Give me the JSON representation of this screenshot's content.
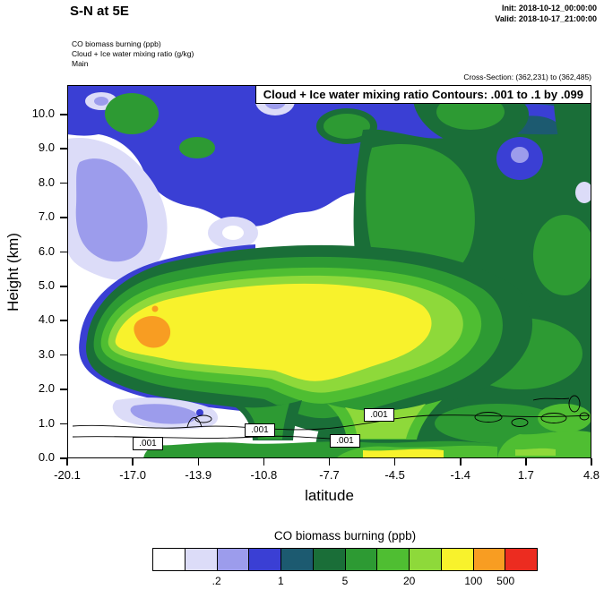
{
  "header": {
    "title": "S-N at 5E",
    "init_line": "Init: 2018-10-12_00:00:00",
    "valid_line": "Valid: 2018-10-17_21:00:00"
  },
  "info_block": {
    "line1": "CO biomass burning   (ppb)",
    "line2": "Cloud + Ice water mixing ratio   (g/kg)",
    "line3": "Main"
  },
  "cross_section_label": "Cross-Section: (362,231) to (362,485)",
  "plot": {
    "banner": "Cloud + Ice water mixing ratio Contours: .001 to .1 by .099",
    "ylabel": "Height (km)",
    "xlabel": "latitude",
    "y_tick_labels": [
      "0.0",
      "1.0",
      "2.0",
      "3.0",
      "4.0",
      "5.0",
      "6.0",
      "7.0",
      "8.0",
      "9.0",
      "10.0"
    ],
    "x_tick_labels": [
      "-20.1",
      "-17.0",
      "-13.9",
      "-10.8",
      "-7.7",
      "-4.5",
      "-1.4",
      "1.7",
      "4.8"
    ],
    "contour_labels": [
      ".001",
      ".001",
      ".001",
      ".001"
    ]
  },
  "colorbar": {
    "title": "CO biomass burning  (ppb)",
    "tick_labels": [
      ".2",
      "1",
      "5",
      "20",
      "100",
      "500"
    ],
    "label_boundaries": [
      2,
      4,
      6,
      8,
      10,
      11
    ],
    "colors": [
      "#FFFFFF",
      "#DCDCF8",
      "#9C9CEC",
      "#3A3FD4",
      "#1C5A70",
      "#1A6E38",
      "#2D9A33",
      "#4FBE32",
      "#8ED93A",
      "#F8F22C",
      "#F89D22",
      "#EC2C20"
    ]
  },
  "chart_data": {
    "type": "heatmap",
    "subtype": "filled-contour-vertical-cross-section",
    "title": "S-N at 5E",
    "xlabel": "latitude",
    "ylabel": "Height (km)",
    "xlim": [
      -20.1,
      4.8
    ],
    "ylim": [
      0,
      10.9
    ],
    "x_ticks": [
      -20.1,
      -17.0,
      -13.9,
      -10.8,
      -7.7,
      -4.5,
      -1.4,
      1.7,
      4.8
    ],
    "y_ticks": [
      0,
      1,
      2,
      3,
      4,
      5,
      6,
      7,
      8,
      9,
      10
    ],
    "grid_on": false,
    "legend_position": "bottom",
    "fill_variable": "CO biomass burning (ppb)",
    "fill_levels": [
      0.1,
      0.2,
      0.5,
      1,
      2,
      5,
      10,
      20,
      50,
      100,
      200,
      500
    ],
    "fill_colors": [
      "#FFFFFF",
      "#DCDCF8",
      "#9C9CEC",
      "#3A3FD4",
      "#1C5A70",
      "#1A6E38",
      "#2D9A33",
      "#4FBE32",
      "#8ED93A",
      "#F8F22C",
      "#F89D22",
      "#EC2C20"
    ],
    "overlay_contour": {
      "variable": "Cloud + Ice water mixing ratio (g/kg)",
      "levels": [
        0.001,
        0.1
      ],
      "annotation": "Contours: .001 to .1 by .099",
      "label_text": ".001"
    },
    "grid": {
      "lat": [
        -20.1,
        -17.0,
        -13.9,
        -10.8,
        -7.7,
        -4.5,
        -1.4,
        1.7,
        4.8
      ],
      "height_km": [
        0,
        1,
        2,
        3,
        4,
        5,
        6,
        7,
        8,
        9,
        10
      ],
      "co_ppb_rows_by_height": [
        [
          0.1,
          10,
          15,
          25,
          30,
          30,
          25,
          20,
          15
        ],
        [
          0.1,
          3,
          5,
          20,
          30,
          30,
          20,
          15,
          15
        ],
        [
          0.3,
          30,
          30,
          40,
          40,
          30,
          15,
          10,
          10
        ],
        [
          0.5,
          80,
          60,
          60,
          50,
          30,
          15,
          10,
          10
        ],
        [
          0.2,
          150,
          60,
          60,
          50,
          30,
          10,
          10,
          10
        ],
        [
          0.1,
          20,
          30,
          30,
          30,
          20,
          10,
          10,
          10
        ],
        [
          0.1,
          2,
          5,
          8,
          10,
          10,
          10,
          10,
          10
        ],
        [
          0.2,
          1,
          3,
          5,
          5,
          8,
          10,
          10,
          10
        ],
        [
          0.2,
          2,
          5,
          3,
          3,
          5,
          8,
          10,
          8
        ],
        [
          0.3,
          2,
          5,
          2,
          2,
          3,
          5,
          8,
          5
        ],
        [
          0.3,
          1,
          1,
          1,
          2,
          2,
          5,
          3,
          3
        ]
      ],
      "plume_max_region": {
        "lat": -16.5,
        "height_km": 3.7,
        "value_ppb": 150
      }
    }
  }
}
